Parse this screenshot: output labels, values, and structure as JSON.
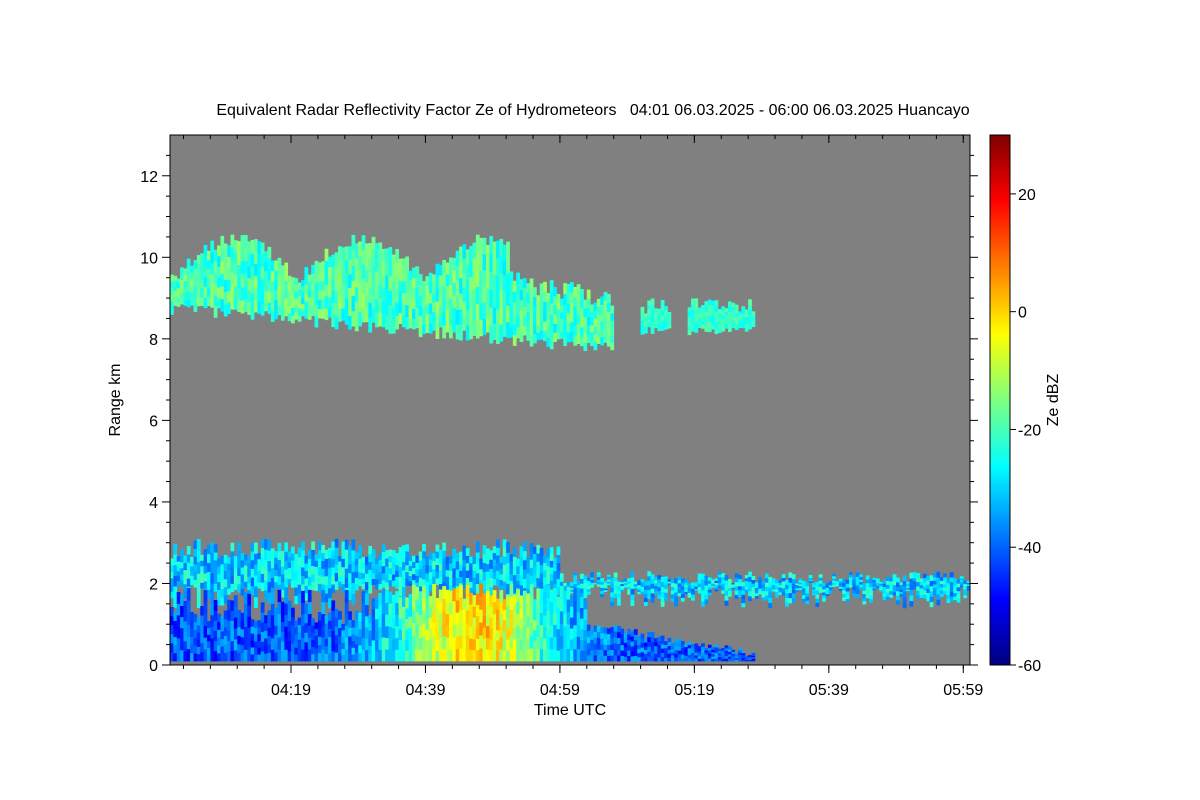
{
  "chart_data": {
    "type": "heatmap",
    "title": "Equivalent Radar Reflectivity Factor Ze of Hydrometeors   04:01 06.03.2025 - 06:00 06.03.2025 Huancayo",
    "xlabel": "Time UTC",
    "ylabel": "Range km",
    "colorbar_label": "Ze dBZ",
    "x_ticks": [
      "04:19",
      "04:39",
      "04:59",
      "05:19",
      "05:39",
      "05:59"
    ],
    "x_tick_minutes": [
      18,
      38,
      58,
      78,
      98,
      118
    ],
    "x_range_minutes_from_0401": [
      0,
      119
    ],
    "y_ticks": [
      0,
      2,
      4,
      6,
      8,
      10,
      12
    ],
    "ylim": [
      0,
      13
    ],
    "colorbar_ticks": [
      20,
      0,
      -20,
      -40,
      -60
    ],
    "colorbar_range": [
      -60,
      30
    ],
    "background_color": "#808080",
    "colormap": [
      "#00007f",
      "#0000ff",
      "#007fff",
      "#00ffff",
      "#7fff7f",
      "#ffff00",
      "#ff7f00",
      "#ff0000",
      "#7f0000"
    ],
    "regions": [
      {
        "name": "upper-cloud",
        "t_start": 0,
        "t_end": 66,
        "bottom_km": 7.3,
        "top_km": 10.4,
        "ze_min": -28,
        "ze_max": -12
      },
      {
        "name": "upper-cloud-fragment",
        "t_start": 70,
        "t_end": 87,
        "bottom_km": 8.0,
        "top_km": 9.0,
        "ze_min": -26,
        "ze_max": -18
      },
      {
        "name": "mid-layer",
        "t_start": 0,
        "t_end": 119,
        "bottom_km": 1.3,
        "top_km": 3.1,
        "ze_min": -40,
        "ze_max": -20
      },
      {
        "name": "lower-precip",
        "t_start": 0,
        "t_end": 87,
        "bottom_km": 0.1,
        "top_km": 2.0,
        "ze_min": -50,
        "ze_max": 8
      }
    ]
  }
}
